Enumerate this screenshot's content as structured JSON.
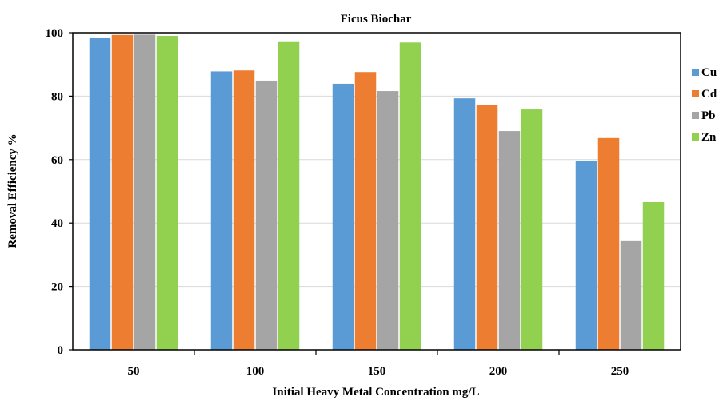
{
  "chart_data": {
    "type": "bar",
    "title": "Ficus Biochar",
    "xlabel": "Initial Heavy Metal Concentration mg/L",
    "ylabel": "Removal Efficiency %",
    "categories": [
      "50",
      "100",
      "150",
      "200",
      "250"
    ],
    "ylim": [
      0,
      100
    ],
    "yticks": [
      "0",
      "20",
      "40",
      "60",
      "80",
      "100"
    ],
    "grid": true,
    "legend_position": "right",
    "series": [
      {
        "name": "Cu",
        "color": "#5B9BD5",
        "values": [
          98.5,
          87.8,
          83.9,
          79.3,
          59.5
        ]
      },
      {
        "name": "Cd",
        "color": "#ED7D31",
        "values": [
          99.3,
          88.1,
          87.6,
          77.1,
          66.8
        ]
      },
      {
        "name": "Pb",
        "color": "#A5A5A5",
        "values": [
          99.4,
          84.9,
          81.6,
          69.0,
          34.3
        ]
      },
      {
        "name": "Zn",
        "color": "#92D050",
        "values": [
          99.0,
          97.3,
          96.9,
          75.8,
          46.6
        ]
      }
    ]
  }
}
